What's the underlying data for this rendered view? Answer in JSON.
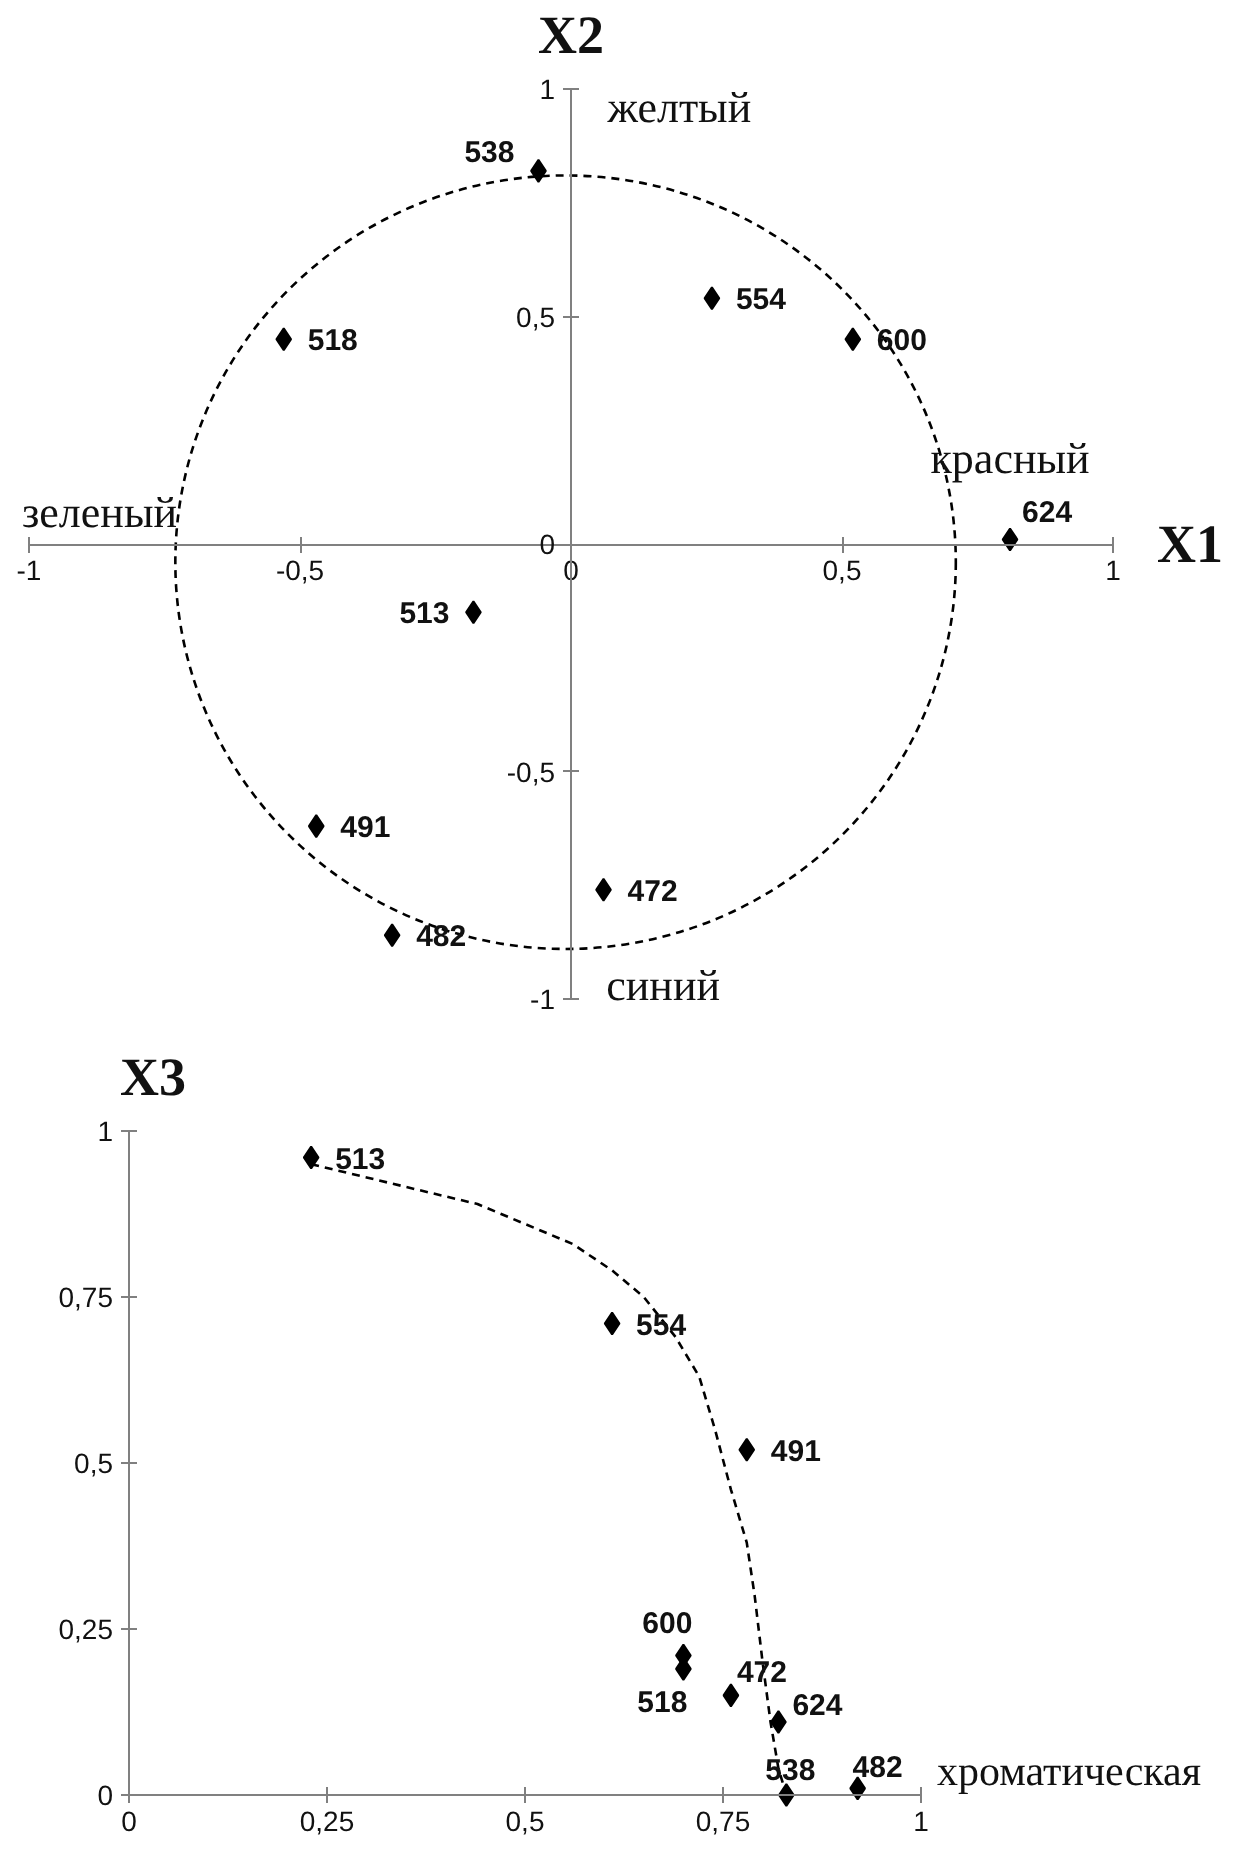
{
  "chart_data": [
    {
      "type": "scatter",
      "xlabel": "X1",
      "ylabel": "X2",
      "xlim": [
        -1,
        1
      ],
      "ylim": [
        -1,
        1
      ],
      "xticks": [
        -1,
        {
          "value": -0.5,
          "label": "-0,5"
        },
        0,
        {
          "value": 0.5,
          "label": "0,5"
        },
        1
      ],
      "yticks": [
        -1,
        {
          "value": -0.5,
          "label": "-0,5"
        },
        0,
        {
          "value": 0.5,
          "label": "0,5"
        },
        1
      ],
      "marker": "diamond",
      "series": [
        {
          "color": "#000000",
          "x": [
            -0.06,
            0.26,
            0.52,
            -0.53,
            0.81,
            -0.18,
            -0.47,
            0.06,
            -0.33
          ],
          "values": [
            0.82,
            0.54,
            0.45,
            0.45,
            0.01,
            -0.15,
            -0.62,
            -0.76,
            -0.86
          ]
        }
      ],
      "annotations": [
        "желтый",
        "красный",
        "зеленый",
        "синий",
        {
          "text": "538",
          "x": -0.06,
          "y": 0.82
        },
        {
          "text": "554",
          "x": 0.26,
          "y": 0.54
        },
        {
          "text": "600",
          "x": 0.52,
          "y": 0.45
        },
        {
          "text": "518",
          "x": -0.53,
          "y": 0.45
        },
        {
          "text": "624",
          "x": 0.81,
          "y": 0.01
        },
        {
          "text": "513",
          "x": -0.18,
          "y": -0.15
        },
        {
          "text": "491",
          "x": -0.47,
          "y": -0.62
        },
        {
          "text": "472",
          "x": 0.06,
          "y": -0.76
        },
        {
          "text": "482",
          "x": -0.33,
          "y": -0.86
        }
      ]
    },
    {
      "type": "scatter",
      "xlabel": "хроматическая",
      "ylabel": "X3",
      "xlim": [
        0,
        1
      ],
      "ylim": [
        0,
        1
      ],
      "xticks": [
        0,
        {
          "value": 0.25,
          "label": "0,25"
        },
        {
          "value": 0.5,
          "label": "0,5"
        },
        {
          "value": 0.75,
          "label": "0,75"
        },
        1
      ],
      "yticks": [
        0,
        {
          "value": 0.25,
          "label": "0,25"
        },
        {
          "value": 0.5,
          "label": "0,5"
        },
        {
          "value": 0.75,
          "label": "0,75"
        },
        1
      ],
      "marker": "diamond",
      "line_style": "dashed",
      "series": [
        {
          "color": "#000000",
          "x": [
            0.23,
            0.61,
            0.78,
            0.7,
            0.7,
            0.76,
            0.82,
            0.83,
            0.92
          ],
          "values": [
            0.96,
            0.71,
            0.52,
            0.21,
            0.19,
            0.15,
            0.11,
            0,
            0.01
          ]
        },
        {
          "type": "line",
          "marker": "none",
          "color": "#000000",
          "x": [
            0.23,
            0.3,
            0.37,
            0.44,
            0.5,
            0.56,
            0.61,
            0.65,
            0.69,
            0.72,
            0.74,
            0.76,
            0.78,
            0.79,
            0.8,
            0.81,
            0.82,
            0.83
          ],
          "values": [
            0.95,
            0.93,
            0.91,
            0.89,
            0.86,
            0.83,
            0.79,
            0.75,
            0.69,
            0.63,
            0.55,
            0.46,
            0.38,
            0.3,
            0.2,
            0.11,
            0.04,
            0
          ]
        }
      ],
      "annotations": [
        {
          "text": "513",
          "x": 0.23,
          "y": 0.96
        },
        {
          "text": "554",
          "x": 0.61,
          "y": 0.71
        },
        {
          "text": "491",
          "x": 0.78,
          "y": 0.52
        },
        {
          "text": "600",
          "x": 0.7,
          "y": 0.21
        },
        {
          "text": "518",
          "x": 0.7,
          "y": 0.19
        },
        {
          "text": "472",
          "x": 0.76,
          "y": 0.15
        },
        {
          "text": "624",
          "x": 0.82,
          "y": 0.11
        },
        {
          "text": "538",
          "x": 0.83,
          "y": 0
        },
        {
          "text": "482",
          "x": 0.92,
          "y": 0.01
        }
      ]
    }
  ]
}
